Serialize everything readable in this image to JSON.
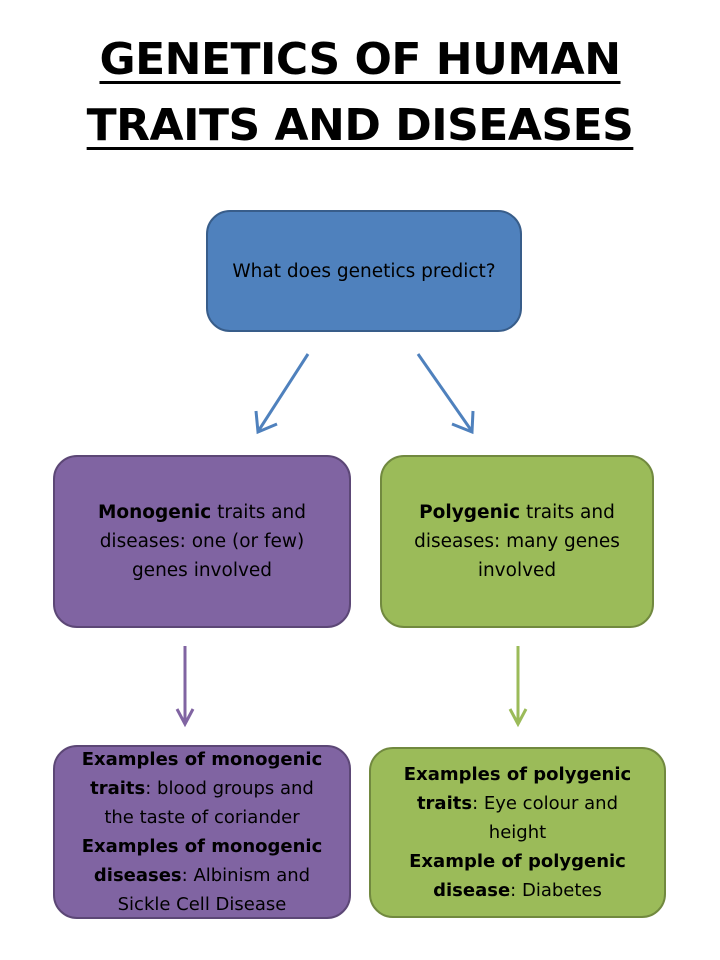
{
  "title": {
    "line1": "GENETICS OF HUMAN",
    "line2": "TRAITS AND DISEASES"
  },
  "root": {
    "text": "What does genetics predict?"
  },
  "monogenic": {
    "bold": "Monogenic",
    "rest_line1": " traits and",
    "line2": "diseases: one (or few)",
    "line3": "genes involved"
  },
  "polygenic": {
    "bold": "Polygenic",
    "rest_line1": " traits and",
    "line2": "diseases: many genes",
    "line3": "involved"
  },
  "monogenic_examples": {
    "traits_bold_1": "Examples of monogenic",
    "traits_bold_2": "traits",
    "traits_rest_2": ": blood groups and",
    "traits_line3": "the taste of coriander",
    "diseases_bold_1": "Examples of monogenic",
    "diseases_bold_2": "diseases",
    "diseases_rest_2": ": Albinism and",
    "diseases_line3": "Sickle Cell Disease"
  },
  "polygenic_examples": {
    "traits_bold_1": "Examples of polygenic",
    "traits_bold_2": "traits",
    "traits_rest_2": ": Eye colour and",
    "traits_line3": "height",
    "disease_bold_1": "Example of polygenic",
    "disease_bold_2": "disease",
    "disease_rest_2": ": Diabetes"
  },
  "colors": {
    "root_fill": "#4f81bd",
    "monogenic_fill": "#8064a2",
    "polygenic_fill": "#9bbb59",
    "arrow_blue": "#4f81bd",
    "arrow_purple": "#8064a2",
    "arrow_green": "#9bbb59"
  }
}
